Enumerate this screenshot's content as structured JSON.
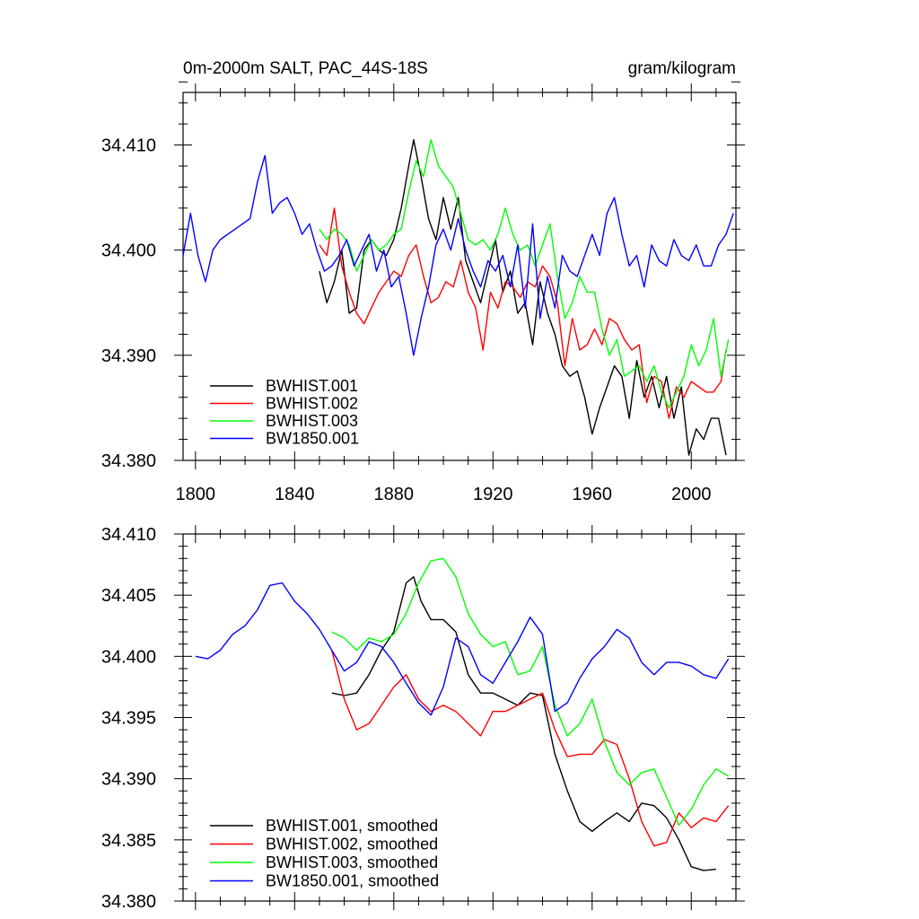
{
  "chart_data": [
    {
      "type": "line",
      "title_left": "0m-2000m SALT, PAC_44S-18S",
      "title_right": "gram/kilogram",
      "xlim": [
        1795,
        2018
      ],
      "ylim": [
        34.38,
        34.415
      ],
      "x_ticks": [
        1800,
        1840,
        1880,
        1920,
        1960,
        2000
      ],
      "x_tick_labels": [
        "1800",
        "1840",
        "1880",
        "1920",
        "1960",
        "2000"
      ],
      "y_ticks": [
        34.38,
        34.39,
        34.4,
        34.41
      ],
      "y_tick_labels": [
        "34.380",
        "34.390",
        "34.400",
        "34.410"
      ],
      "legend_position": "bottom-left",
      "series": [
        {
          "name": "BWHIST.001",
          "color": "#000000",
          "x": [
            1850,
            1853,
            1856,
            1859,
            1862,
            1865,
            1868,
            1871,
            1874,
            1877,
            1880,
            1883,
            1886,
            1888,
            1891,
            1894,
            1897,
            1900,
            1903,
            1906,
            1909,
            1912,
            1915,
            1918,
            1921,
            1924,
            1927,
            1930,
            1933,
            1936,
            1939,
            1942,
            1945,
            1948,
            1951,
            1954,
            1957,
            1960,
            1963,
            1966,
            1969,
            1972,
            1975,
            1978,
            1981,
            1984,
            1987,
            1990,
            1993,
            1996,
            1999,
            2002,
            2005,
            2008,
            2011,
            2014
          ],
          "values": [
            34.398,
            34.395,
            34.397,
            34.4,
            34.394,
            34.3945,
            34.4,
            34.401,
            34.4,
            34.3995,
            34.401,
            34.404,
            34.408,
            34.4105,
            34.407,
            34.403,
            34.401,
            34.405,
            34.402,
            34.405,
            34.399,
            34.397,
            34.395,
            34.398,
            34.401,
            34.396,
            34.398,
            34.394,
            34.395,
            34.391,
            34.397,
            34.394,
            34.392,
            34.389,
            34.388,
            34.3885,
            34.386,
            34.3825,
            34.385,
            34.387,
            34.389,
            34.388,
            34.384,
            34.3895,
            34.386,
            34.388,
            34.385,
            34.388,
            34.384,
            34.387,
            34.3805,
            34.383,
            34.382,
            34.384,
            34.384,
            34.3805
          ]
        },
        {
          "name": "BWHIST.002",
          "color": "#ff0000",
          "x": [
            1850,
            1853,
            1856,
            1859,
            1862,
            1865,
            1868,
            1871,
            1874,
            1877,
            1880,
            1883,
            1886,
            1889,
            1892,
            1895,
            1898,
            1901,
            1904,
            1907,
            1910,
            1913,
            1916,
            1919,
            1922,
            1925,
            1928,
            1931,
            1934,
            1937,
            1940,
            1943,
            1946,
            1949,
            1952,
            1955,
            1958,
            1961,
            1964,
            1967,
            1970,
            1973,
            1976,
            1979,
            1982,
            1985,
            1988,
            1991,
            1994,
            1997,
            2000,
            2003,
            2006,
            2009,
            2012,
            2014
          ],
          "values": [
            34.4005,
            34.3995,
            34.404,
            34.3985,
            34.396,
            34.394,
            34.393,
            34.3945,
            34.396,
            34.397,
            34.398,
            34.3975,
            34.3995,
            34.4005,
            34.3975,
            34.395,
            34.3955,
            34.397,
            34.3965,
            34.399,
            34.396,
            34.3945,
            34.3905,
            34.396,
            34.3945,
            34.397,
            34.3965,
            34.3955,
            34.397,
            34.3965,
            34.3985,
            34.3975,
            34.395,
            34.389,
            34.3935,
            34.3905,
            34.391,
            34.3925,
            34.391,
            34.3935,
            34.393,
            34.3915,
            34.3905,
            34.391,
            34.3855,
            34.388,
            34.3875,
            34.384,
            34.387,
            34.386,
            34.3875,
            34.387,
            34.3865,
            34.3865,
            34.3875,
            34.3905
          ]
        },
        {
          "name": "BWHIST.003",
          "color": "#00ff00",
          "x": [
            1850,
            1853,
            1856,
            1859,
            1862,
            1865,
            1868,
            1871,
            1874,
            1877,
            1880,
            1883,
            1886,
            1889,
            1892,
            1895,
            1898,
            1901,
            1904,
            1907,
            1910,
            1913,
            1916,
            1919,
            1922,
            1925,
            1928,
            1931,
            1934,
            1937,
            1940,
            1943,
            1946,
            1949,
            1952,
            1955,
            1958,
            1961,
            1964,
            1967,
            1970,
            1973,
            1976,
            1979,
            1982,
            1985,
            1988,
            1991,
            1994,
            1997,
            2000,
            2003,
            2006,
            2009,
            2012,
            2015
          ],
          "values": [
            34.402,
            34.401,
            34.402,
            34.4015,
            34.4005,
            34.398,
            34.3995,
            34.401,
            34.4,
            34.4005,
            34.4015,
            34.402,
            34.4055,
            34.4085,
            34.407,
            34.4105,
            34.408,
            34.407,
            34.406,
            34.4035,
            34.401,
            34.4005,
            34.401,
            34.4,
            34.4015,
            34.404,
            34.4015,
            34.4,
            34.4005,
            34.3985,
            34.4005,
            34.4025,
            34.3975,
            34.3935,
            34.395,
            34.3975,
            34.396,
            34.396,
            34.3925,
            34.39,
            34.3915,
            34.388,
            34.3885,
            34.389,
            34.3875,
            34.389,
            34.3865,
            34.385,
            34.3865,
            34.388,
            34.391,
            34.389,
            34.3905,
            34.3935,
            34.388,
            34.3915
          ]
        },
        {
          "name": "BW1850.001",
          "color": "#0000ff",
          "x": [
            1795,
            1798,
            1801,
            1804,
            1807,
            1810,
            1813,
            1816,
            1819,
            1822,
            1825,
            1828,
            1831,
            1834,
            1837,
            1840,
            1843,
            1846,
            1849,
            1852,
            1855,
            1858,
            1861,
            1864,
            1867,
            1870,
            1873,
            1876,
            1879,
            1882,
            1885,
            1888,
            1891,
            1894,
            1897,
            1900,
            1903,
            1906,
            1909,
            1912,
            1915,
            1918,
            1921,
            1924,
            1927,
            1930,
            1933,
            1936,
            1939,
            1942,
            1945,
            1948,
            1951,
            1954,
            1957,
            1960,
            1963,
            1966,
            1969,
            1972,
            1975,
            1978,
            1981,
            1984,
            1987,
            1990,
            1993,
            1996,
            1999,
            2002,
            2005,
            2008,
            2011,
            2014,
            2017
          ],
          "values": [
            34.3995,
            34.4035,
            34.3995,
            34.397,
            34.4,
            34.401,
            34.4015,
            34.402,
            34.4025,
            34.403,
            34.4065,
            34.409,
            34.4035,
            34.4045,
            34.405,
            34.4035,
            34.4015,
            34.4025,
            34.4,
            34.398,
            34.3985,
            34.3995,
            34.401,
            34.3985,
            34.4,
            34.4015,
            34.398,
            34.4,
            34.3965,
            34.3975,
            34.394,
            34.39,
            34.3935,
            34.3965,
            34.4005,
            34.402,
            34.4,
            34.403,
            34.4,
            34.398,
            34.3965,
            34.399,
            34.398,
            34.3995,
            34.3965,
            34.4005,
            34.3945,
            34.4025,
            34.3935,
            34.3975,
            34.3945,
            34.3995,
            34.398,
            34.3975,
            34.3995,
            34.4015,
            34.3995,
            34.4035,
            34.405,
            34.4015,
            34.3985,
            34.3995,
            34.3965,
            34.4005,
            34.399,
            34.3985,
            34.401,
            34.3995,
            34.399,
            34.4005,
            34.3985,
            34.3985,
            34.4005,
            34.4015,
            34.4035
          ]
        }
      ]
    },
    {
      "type": "line",
      "xlim": [
        1795,
        2018
      ],
      "ylim": [
        34.38,
        34.41
      ],
      "x_ticks": [
        1800,
        1840,
        1880,
        1920,
        1960,
        2000
      ],
      "y_ticks": [
        34.38,
        34.385,
        34.39,
        34.395,
        34.4,
        34.405,
        34.41
      ],
      "y_tick_labels": [
        "34.380",
        "34.385",
        "34.390",
        "34.395",
        "34.400",
        "34.405",
        "34.410"
      ],
      "legend_position": "bottom-left",
      "series": [
        {
          "name": "BWHIST.001, smoothed",
          "color": "#000000",
          "x": [
            1855,
            1860,
            1865,
            1870,
            1875,
            1880,
            1885,
            1888,
            1891,
            1895,
            1900,
            1905,
            1910,
            1915,
            1920,
            1925,
            1930,
            1935,
            1940,
            1945,
            1950,
            1955,
            1960,
            1965,
            1970,
            1975,
            1980,
            1985,
            1990,
            1995,
            2000,
            2005,
            2010
          ],
          "values": [
            34.397,
            34.3968,
            34.397,
            34.3985,
            34.4005,
            34.402,
            34.406,
            34.4065,
            34.4045,
            34.403,
            34.403,
            34.402,
            34.3985,
            34.397,
            34.397,
            34.3965,
            34.396,
            34.397,
            34.3968,
            34.392,
            34.389,
            34.3865,
            34.3857,
            34.3865,
            34.3872,
            34.3865,
            34.388,
            34.3878,
            34.3868,
            34.385,
            34.3828,
            34.3825,
            34.3826
          ]
        },
        {
          "name": "BWHIST.002, smoothed",
          "color": "#ff0000",
          "x": [
            1855,
            1860,
            1865,
            1870,
            1875,
            1880,
            1885,
            1890,
            1895,
            1900,
            1905,
            1910,
            1915,
            1920,
            1925,
            1930,
            1935,
            1940,
            1945,
            1950,
            1955,
            1960,
            1965,
            1970,
            1975,
            1980,
            1985,
            1990,
            1995,
            2000,
            2005,
            2010,
            2015
          ],
          "values": [
            34.4005,
            34.3965,
            34.394,
            34.3945,
            34.396,
            34.3975,
            34.3985,
            34.3965,
            34.3955,
            34.396,
            34.3955,
            34.3945,
            34.3935,
            34.3955,
            34.3955,
            34.396,
            34.3965,
            34.397,
            34.394,
            34.3918,
            34.392,
            34.392,
            34.3932,
            34.3928,
            34.39,
            34.3865,
            34.3845,
            34.3848,
            34.3872,
            34.386,
            34.3868,
            34.3865,
            34.3878
          ]
        },
        {
          "name": "BWHIST.003, smoothed",
          "color": "#00ff00",
          "x": [
            1855,
            1860,
            1865,
            1870,
            1875,
            1880,
            1885,
            1890,
            1895,
            1900,
            1905,
            1910,
            1915,
            1920,
            1925,
            1930,
            1935,
            1940,
            1945,
            1950,
            1955,
            1960,
            1965,
            1970,
            1975,
            1980,
            1985,
            1990,
            1995,
            2000,
            2005,
            2010,
            2015
          ],
          "values": [
            34.402,
            34.4015,
            34.4005,
            34.4015,
            34.4012,
            34.4018,
            34.4035,
            34.406,
            34.4078,
            34.408,
            34.4065,
            34.4035,
            34.4018,
            34.4008,
            34.4012,
            34.3985,
            34.3988,
            34.4008,
            34.396,
            34.3935,
            34.3945,
            34.3965,
            34.393,
            34.3905,
            34.3895,
            34.3905,
            34.3908,
            34.3885,
            34.3862,
            34.3875,
            34.3895,
            34.3908,
            34.3902
          ]
        },
        {
          "name": "BW1850.001, smoothed",
          "color": "#0000ff",
          "x": [
            1800,
            1805,
            1810,
            1815,
            1820,
            1825,
            1830,
            1835,
            1840,
            1845,
            1850,
            1855,
            1860,
            1865,
            1870,
            1875,
            1880,
            1885,
            1890,
            1895,
            1900,
            1905,
            1910,
            1915,
            1920,
            1925,
            1930,
            1935,
            1940,
            1945,
            1950,
            1955,
            1960,
            1965,
            1970,
            1975,
            1980,
            1985,
            1990,
            1995,
            2000,
            2005,
            2010,
            2015
          ],
          "values": [
            34.4,
            34.3998,
            34.4005,
            34.4018,
            34.4025,
            34.4038,
            34.4058,
            34.406,
            34.4045,
            34.4035,
            34.4022,
            34.4005,
            34.3988,
            34.3995,
            34.4012,
            34.4008,
            34.3995,
            34.3978,
            34.3962,
            34.3952,
            34.3975,
            34.4015,
            34.4008,
            34.3985,
            34.3978,
            34.3995,
            34.4012,
            34.4032,
            34.4018,
            34.3955,
            34.3962,
            34.3982,
            34.3998,
            34.4008,
            34.4022,
            34.4015,
            34.3995,
            34.3985,
            34.3995,
            34.3995,
            34.3992,
            34.3985,
            34.3982,
            34.3998
          ]
        }
      ]
    }
  ]
}
